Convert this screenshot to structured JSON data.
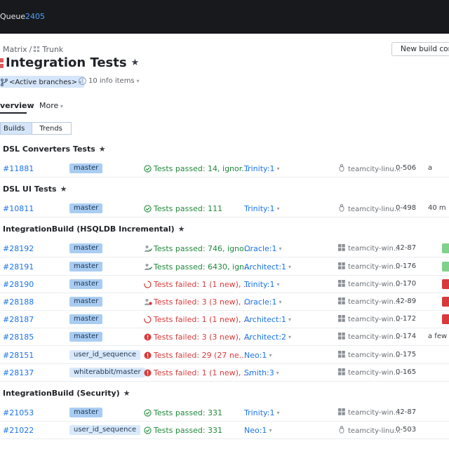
{
  "topbar": {
    "queue_label": "Queue",
    "queue_count": "2405"
  },
  "breadcrumb": {
    "project": "Matrix",
    "separator": "/",
    "subproject": "Trunk"
  },
  "header": {
    "new_config_label": "New build configuration",
    "title": "Integration Tests",
    "branch_selector": "<Active branches>",
    "info_items": "10 info items"
  },
  "tabs": {
    "overview": "verview",
    "more": "More"
  },
  "view_toggle": {
    "builds": "Builds",
    "trends": "Trends"
  },
  "colors": {
    "passed": "#1f8a3a",
    "failed": "#d93a3a",
    "accent": "#1a73e8",
    "topbar": "#18191c",
    "progress_ok": "#7fd18b",
    "progress_fail": "#d63a3a"
  },
  "sections": [
    {
      "name": "DSL Converters Tests",
      "builds": [
        {
          "number": "#11881",
          "branch": "master",
          "status_icon": "check-circle-icon",
          "status": "Tests passed: 14, ignor...",
          "result": "passed",
          "agent": "Trinity:1",
          "os_icon": "linux-icon",
          "agent_name": "teamcity-linu...",
          "duration": "0-506",
          "tail": "a"
        }
      ]
    },
    {
      "name": "DSL UI Tests",
      "builds": [
        {
          "number": "#10811",
          "branch": "master",
          "status_icon": "check-circle-icon",
          "status": "Tests passed: 111",
          "result": "passed",
          "agent": "Trinity:1",
          "os_icon": "linux-icon",
          "agent_name": "teamcity-linu...",
          "duration": "0-498",
          "tail": "40 m"
        }
      ]
    },
    {
      "name": "IntegrationBuild (HSQLDB Incremental)",
      "builds": [
        {
          "number": "#28192",
          "branch": "master",
          "status_icon": "user-check-icon",
          "status": "Tests passed: 746, igno...",
          "result": "passed",
          "agent": "Oracle:1",
          "os_icon": "windows-icon",
          "agent_name": "teamcity-win...",
          "duration": "42-87",
          "progress": "ok"
        },
        {
          "number": "#28191",
          "branch": "master",
          "status_icon": "user-check-icon",
          "status": "Tests passed: 6430, ign...",
          "result": "passed",
          "agent": "Architect:1",
          "os_icon": "windows-icon",
          "agent_name": "teamcity-win...",
          "duration": "0-176",
          "progress": "ok"
        },
        {
          "number": "#28190",
          "branch": "master",
          "status_icon": "spinner-icon",
          "status": "Tests failed: 1 (1 new), ...",
          "result": "failed",
          "agent": "Trinity:1",
          "os_icon": "windows-icon",
          "agent_name": "teamcity-win...",
          "duration": "0-170",
          "progress": "fail"
        },
        {
          "number": "#28188",
          "branch": "master",
          "status_icon": "user-fail-icon",
          "status": "Tests failed: 3 (3 new), ...",
          "result": "failed",
          "agent": "Oracle:1",
          "os_icon": "windows-icon",
          "agent_name": "teamcity-win...",
          "duration": "42-89",
          "progress": "fail"
        },
        {
          "number": "#28187",
          "branch": "master",
          "status_icon": "spinner-icon",
          "status": "Tests failed: 1 (1 new), ...",
          "result": "failed",
          "agent": "Architect:1",
          "os_icon": "windows-icon",
          "agent_name": "teamcity-win...",
          "duration": "0-172",
          "progress": "fail"
        },
        {
          "number": "#28185",
          "branch": "master",
          "status_icon": "error-circle-icon",
          "status": "Tests failed: 3 (3 new), ...",
          "result": "failed",
          "agent": "Architect:2",
          "os_icon": "windows-icon",
          "agent_name": "teamcity-win...",
          "duration": "0-174",
          "tail": "a few s"
        },
        {
          "number": "#28151",
          "branch": "user_id_sequence",
          "status_icon": "error-circle-icon",
          "status": "Tests failed: 29 (27 ne...",
          "result": "failed",
          "agent": "Neo:1",
          "os_icon": "windows-icon",
          "agent_name": "teamcity-win...",
          "duration": "0-175"
        },
        {
          "number": "#28137",
          "branch": "whiterabbit/master",
          "status_icon": "error-circle-icon",
          "status": "Tests failed: 1 (1 new), ...",
          "result": "failed",
          "agent": "Smith:3",
          "os_icon": "windows-icon",
          "agent_name": "teamcity-win...",
          "duration": "0-165"
        }
      ]
    },
    {
      "name": "IntegrationBuild (Security)",
      "builds": [
        {
          "number": "#21053",
          "branch": "master",
          "status_icon": "check-circle-icon",
          "status": "Tests passed: 331",
          "result": "passed",
          "agent": "Trinity:1",
          "os_icon": "windows-icon",
          "agent_name": "teamcity-win...",
          "duration": "42-87"
        },
        {
          "number": "#21022",
          "branch": "user_id_sequence",
          "status_icon": "check-circle-icon",
          "status": "Tests passed: 331",
          "result": "passed",
          "agent": "Neo:1",
          "os_icon": "linux-icon",
          "agent_name": "teamcity-linu...",
          "duration": "0-503"
        }
      ]
    }
  ]
}
